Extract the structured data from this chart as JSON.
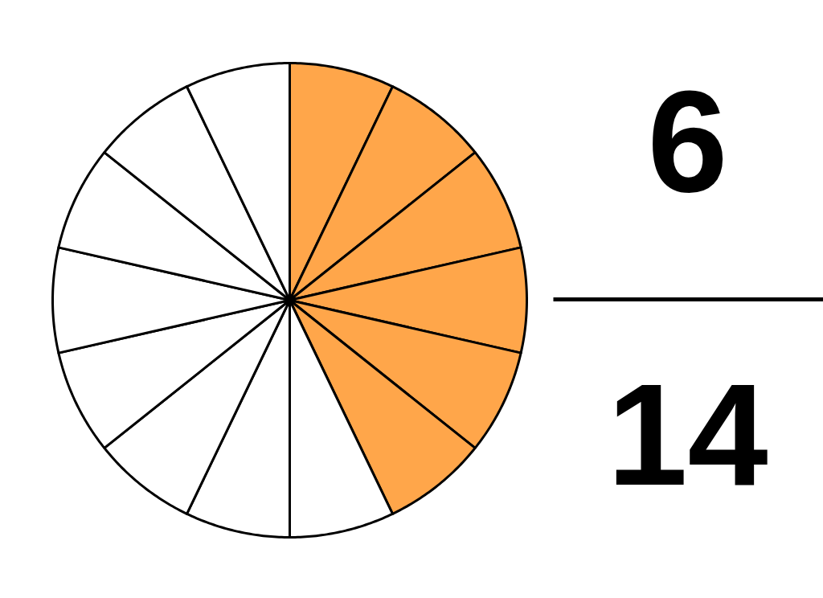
{
  "chart_data": {
    "type": "pie",
    "categories": [
      null,
      null,
      null,
      null,
      null,
      null,
      null,
      null,
      null,
      null,
      null,
      null,
      null,
      null
    ],
    "values": [
      7.14,
      7.14,
      7.14,
      7.14,
      7.14,
      7.14,
      7.14,
      7.14,
      7.14,
      7.14,
      7.14,
      7.14,
      7.14,
      7.14
    ],
    "colors": [
      "#ffa64a",
      "#ffa64a",
      "#ffa64a",
      "#ffa64a",
      "#ffa64a",
      "#ffa64a",
      "#ffffff",
      "#ffffff",
      "#ffffff",
      "#ffffff",
      "#ffffff",
      "#ffffff",
      "#ffffff",
      "#ffffff"
    ],
    "annotations": [
      "6",
      "14"
    ]
  }
}
